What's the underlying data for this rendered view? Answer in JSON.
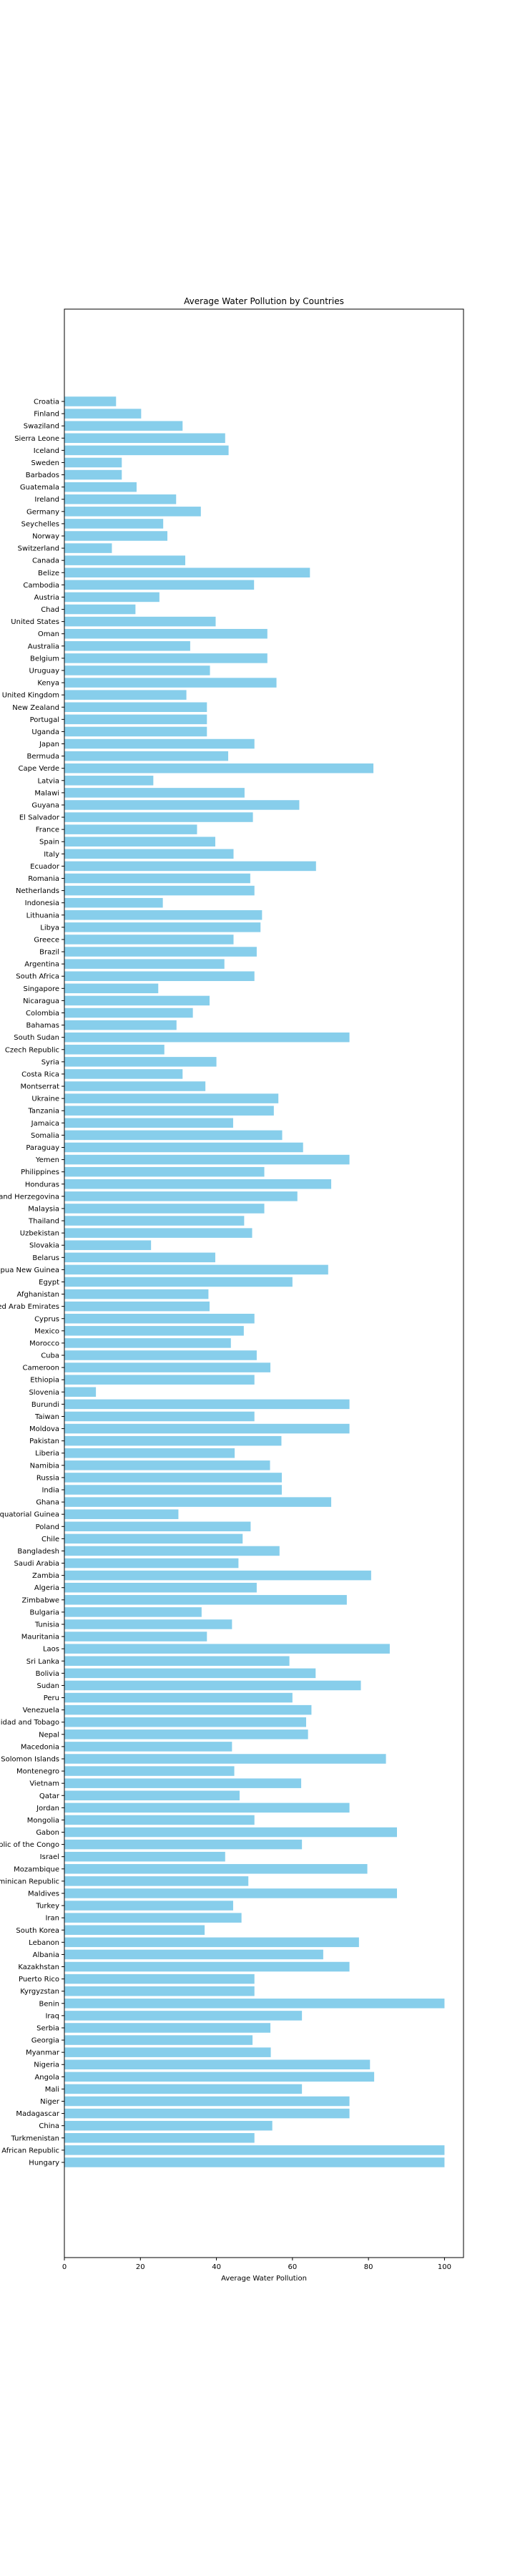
{
  "chart_data": {
    "type": "bar",
    "orientation": "horizontal",
    "title": "Average Water Pollution by Countries",
    "xlabel": "Average Water Pollution",
    "ylabel": "",
    "xlim": [
      0,
      105
    ],
    "xticks": [
      0,
      20,
      40,
      60,
      80,
      100
    ],
    "grid": false,
    "bar_color": "#87ceeb",
    "categories": [
      "Croatia",
      "Finland",
      "Swaziland",
      "Sierra Leone",
      "Iceland",
      "Sweden",
      "Barbados",
      "Guatemala",
      "Ireland",
      "Germany",
      "Seychelles",
      "Norway",
      "Switzerland",
      "Canada",
      "Belize",
      "Cambodia",
      "Austria",
      "Chad",
      "United States",
      "Oman",
      "Australia",
      "Belgium",
      "Uruguay",
      "Kenya",
      "United Kingdom",
      "New Zealand",
      "Portugal",
      "Uganda",
      "Japan",
      "Bermuda",
      "Cape Verde",
      "Latvia",
      "Malawi",
      "Guyana",
      "El Salvador",
      "France",
      "Spain",
      "Italy",
      "Ecuador",
      "Romania",
      "Netherlands",
      "Indonesia",
      "Lithuania",
      "Libya",
      "Greece",
      "Brazil",
      "Argentina",
      "South Africa",
      "Singapore",
      "Nicaragua",
      "Colombia",
      "Bahamas",
      "South Sudan",
      "Czech Republic",
      "Syria",
      "Costa Rica",
      "Montserrat",
      "Ukraine",
      "Tanzania",
      "Jamaica",
      "Somalia",
      "Paraguay",
      "Yemen",
      "Philippines",
      "Honduras",
      "Bosnia and Herzegovina",
      "Malaysia",
      "Thailand",
      "Uzbekistan",
      "Slovakia",
      "Belarus",
      "Papua New Guinea",
      "Egypt",
      "Afghanistan",
      "United Arab Emirates",
      "Cyprus",
      "Mexico",
      "Morocco",
      "Cuba",
      "Cameroon",
      "Ethiopia",
      "Slovenia",
      "Burundi",
      "Taiwan",
      "Moldova",
      "Pakistan",
      "Liberia",
      "Namibia",
      "Russia",
      "India",
      "Ghana",
      "Equatorial Guinea",
      "Poland",
      "Chile",
      "Bangladesh",
      "Saudi Arabia",
      "Zambia",
      "Algeria",
      "Zimbabwe",
      "Bulgaria",
      "Tunisia",
      "Mauritania",
      "Laos",
      "Sri Lanka",
      "Bolivia",
      "Sudan",
      "Peru",
      "Venezuela",
      "Trinidad and Tobago",
      "Nepal",
      "Macedonia",
      "Solomon Islands",
      "Montenegro",
      "Vietnam",
      "Qatar",
      "Jordan",
      "Mongolia",
      "Gabon",
      "Republic of the Congo",
      "Israel",
      "Mozambique",
      "Dominican Republic",
      "Maldives",
      "Turkey",
      "Iran",
      "South Korea",
      "Lebanon",
      "Albania",
      "Kazakhstan",
      "Puerto Rico",
      "Kyrgyzstan",
      "Benin",
      "Iraq",
      "Serbia",
      "Georgia",
      "Myanmar",
      "Nigeria",
      "Angola",
      "Mali",
      "Niger",
      "Madagascar",
      "China",
      "Turkmenistan",
      "Central African Republic",
      "Hungary"
    ],
    "values": [
      13.6,
      20.2,
      31.1,
      42.3,
      43.2,
      15.1,
      15.1,
      19.0,
      29.4,
      35.9,
      26.0,
      27.1,
      12.5,
      31.8,
      64.6,
      49.9,
      25.0,
      18.7,
      39.8,
      53.4,
      33.1,
      53.4,
      38.3,
      55.8,
      32.1,
      37.5,
      37.5,
      37.5,
      50.0,
      43.1,
      81.3,
      23.4,
      47.4,
      61.8,
      49.6,
      34.9,
      39.7,
      44.5,
      66.2,
      48.9,
      50.0,
      25.9,
      52.0,
      51.6,
      44.5,
      50.6,
      42.1,
      50.0,
      24.7,
      38.2,
      33.8,
      29.5,
      75.0,
      26.3,
      40.0,
      31.1,
      37.1,
      56.3,
      55.1,
      44.4,
      57.3,
      62.8,
      75.0,
      52.6,
      70.2,
      61.3,
      52.6,
      47.3,
      49.4,
      22.8,
      39.7,
      69.4,
      60.0,
      37.9,
      38.2,
      50.0,
      47.2,
      43.8,
      50.6,
      54.2,
      50.0,
      8.3,
      75.0,
      50.0,
      75.0,
      57.1,
      44.8,
      54.1,
      57.2,
      57.2,
      70.2,
      30.0,
      49.0,
      46.9,
      56.6,
      45.8,
      80.7,
      50.6,
      74.3,
      36.1,
      44.1,
      37.5,
      85.6,
      59.2,
      66.1,
      78.0,
      60.0,
      65.0,
      63.6,
      64.1,
      44.1,
      84.6,
      44.7,
      62.3,
      46.1,
      75.0,
      50.0,
      87.5,
      62.5,
      42.3,
      79.7,
      48.4,
      87.5,
      44.4,
      46.6,
      36.9,
      77.5,
      68.1,
      75.0,
      50.0,
      50.0,
      100.0,
      62.5,
      54.2,
      49.5,
      54.3,
      80.4,
      81.5,
      62.5,
      75.0,
      75.0,
      54.7,
      50.0,
      100.0,
      100.0
    ]
  }
}
